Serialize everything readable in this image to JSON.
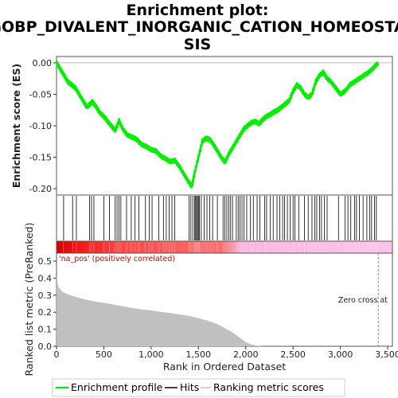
{
  "chart_data": {
    "type": "line",
    "title_lines": [
      "Enrichment plot:",
      "GOBP_DIVALENT_INORGANIC_CATION_HOMEOSTA",
      "SIS"
    ],
    "es_panel": {
      "ylabel": "Enrichment score (ES)",
      "yticks": [
        "0.00",
        "-0.05",
        "-0.10",
        "-0.15",
        "-0.20"
      ],
      "ylim": [
        -0.21,
        0.01
      ],
      "series": [
        {
          "name": "Enrichment profile",
          "color": "#00ff00",
          "x": [
            0,
            40,
            80,
            120,
            160,
            200,
            240,
            280,
            320,
            360,
            380,
            420,
            460,
            500,
            540,
            580,
            620,
            660,
            700,
            750,
            800,
            850,
            900,
            950,
            1000,
            1050,
            1100,
            1150,
            1200,
            1250,
            1300,
            1350,
            1400,
            1430,
            1460,
            1500,
            1540,
            1580,
            1620,
            1660,
            1700,
            1740,
            1780,
            1820,
            1860,
            1900,
            1940,
            1980,
            2020,
            2060,
            2100,
            2140,
            2180,
            2220,
            2260,
            2300,
            2340,
            2380,
            2420,
            2460,
            2500,
            2540,
            2580,
            2620,
            2660,
            2700,
            2740,
            2780,
            2820,
            2860,
            2900,
            2950,
            3000,
            3050,
            3100,
            3150,
            3200,
            3250,
            3300,
            3350,
            3400
          ],
          "y": [
            0.0,
            -0.01,
            -0.02,
            -0.03,
            -0.035,
            -0.04,
            -0.05,
            -0.06,
            -0.07,
            -0.065,
            -0.062,
            -0.07,
            -0.08,
            -0.085,
            -0.093,
            -0.1,
            -0.108,
            -0.092,
            -0.105,
            -0.115,
            -0.118,
            -0.122,
            -0.13,
            -0.133,
            -0.138,
            -0.14,
            -0.148,
            -0.152,
            -0.157,
            -0.155,
            -0.165,
            -0.178,
            -0.19,
            -0.196,
            -0.175,
            -0.15,
            -0.125,
            -0.12,
            -0.122,
            -0.13,
            -0.14,
            -0.15,
            -0.158,
            -0.145,
            -0.135,
            -0.125,
            -0.115,
            -0.105,
            -0.1,
            -0.095,
            -0.093,
            -0.097,
            -0.09,
            -0.085,
            -0.082,
            -0.078,
            -0.075,
            -0.07,
            -0.065,
            -0.06,
            -0.045,
            -0.035,
            -0.04,
            -0.05,
            -0.055,
            -0.05,
            -0.03,
            -0.02,
            -0.015,
            -0.025,
            -0.03,
            -0.04,
            -0.05,
            -0.045,
            -0.035,
            -0.03,
            -0.025,
            -0.02,
            -0.015,
            -0.008,
            0.0
          ]
        }
      ]
    },
    "hits": [
      75,
      170,
      210,
      350,
      370,
      395,
      500,
      560,
      620,
      640,
      660,
      680,
      740,
      790,
      830,
      870,
      940,
      980,
      1010,
      1080,
      1130,
      1160,
      1190,
      1220,
      1250,
      1400,
      1420,
      1440,
      1460,
      1470,
      1480,
      1490,
      1500,
      1510,
      1530,
      1560,
      1590,
      1620,
      1650,
      1700,
      1760,
      1780,
      1800,
      1820,
      1840,
      1860,
      1900,
      1920,
      1940,
      1960,
      1980,
      2010,
      2050,
      2080,
      2120,
      2150,
      2200,
      2220,
      2260,
      2290,
      2330,
      2360,
      2390,
      2410,
      2440,
      2470,
      2500,
      2520,
      2560,
      2620,
      2660,
      2700,
      2730,
      2750,
      2780,
      2800,
      2830,
      2860,
      2980,
      3050,
      3080,
      3110,
      3150,
      3170,
      3200,
      3240,
      3280,
      3310,
      3330,
      3360,
      3380
    ],
    "gradient_label": "'na_pos' (positively correlated)",
    "ranked_panel": {
      "ylabel": "Ranked list metric (PreRanked)",
      "yticks": [
        "0.0",
        "0.1",
        "0.2",
        "0.3",
        "0.4",
        "0.5"
      ],
      "ylim": [
        0,
        0.5
      ],
      "x": [
        0,
        20,
        60,
        120,
        200,
        300,
        400,
        500,
        600,
        700,
        800,
        900,
        1000,
        1100,
        1200,
        1300,
        1400,
        1500,
        1600,
        1700,
        1750,
        1800,
        1850,
        1900,
        1950,
        2000,
        2050,
        2100,
        2150,
        2200,
        3400
      ],
      "values": [
        0.41,
        0.35,
        0.32,
        0.305,
        0.29,
        0.275,
        0.263,
        0.255,
        0.245,
        0.235,
        0.225,
        0.217,
        0.21,
        0.202,
        0.195,
        0.187,
        0.178,
        0.165,
        0.15,
        0.13,
        0.115,
        0.1,
        0.085,
        0.065,
        0.045,
        0.025,
        0.012,
        0.005,
        0.002,
        0.0,
        0.0
      ],
      "zero_cross_label": "Zero cross at",
      "zero_cross_rank": 3400
    },
    "xaxis": {
      "xlabel": "Rank in Ordered Dataset",
      "xlim": [
        0,
        3550
      ],
      "xticks": [
        0,
        500,
        1000,
        1500,
        2000,
        2500,
        3000,
        3500
      ],
      "xtick_labels": [
        "0",
        "500",
        "1,000",
        "1,500",
        "2,000",
        "2,500",
        "3,000",
        "3,500"
      ]
    },
    "legend": {
      "placement": "bottom",
      "entries": [
        "Enrichment profile",
        "Hits",
        "Ranking metric scores"
      ]
    }
  }
}
